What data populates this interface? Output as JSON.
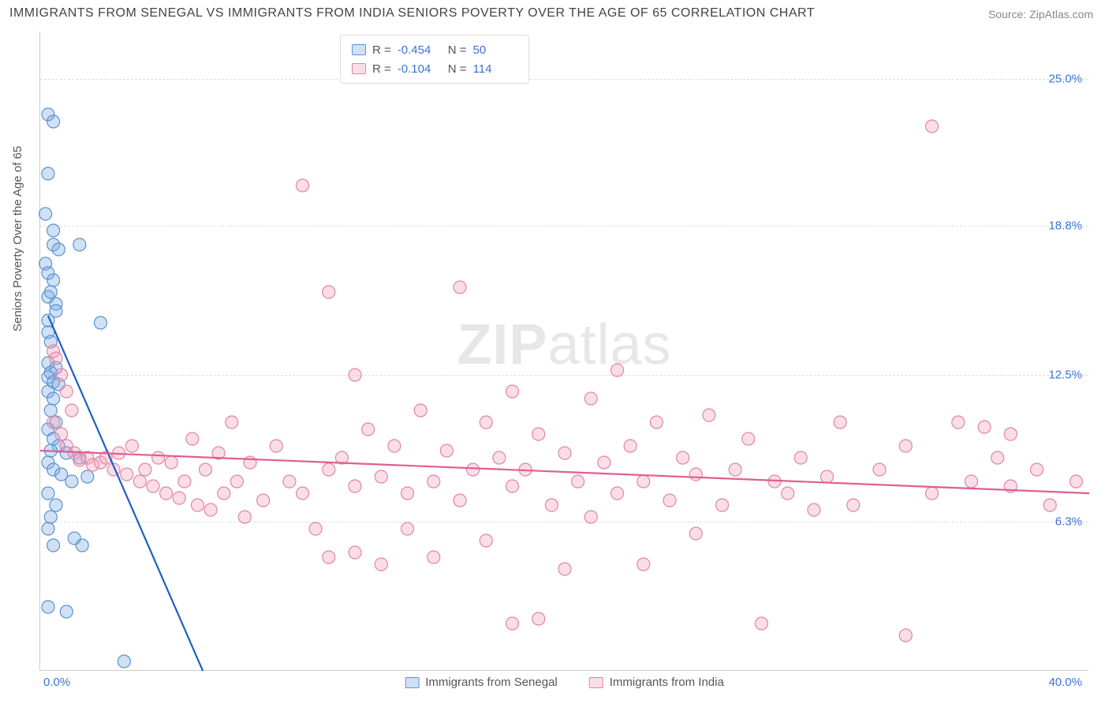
{
  "title": "IMMIGRANTS FROM SENEGAL VS IMMIGRANTS FROM INDIA SENIORS POVERTY OVER THE AGE OF 65 CORRELATION CHART",
  "source": "Source: ZipAtlas.com",
  "ylabel": "Seniors Poverty Over the Age of 65",
  "watermark_bold": "ZIP",
  "watermark_rest": "atlas",
  "chart": {
    "type": "scatter",
    "xlim": [
      0,
      40
    ],
    "ylim": [
      0,
      27
    ],
    "x_tick_left": "0.0%",
    "x_tick_right": "40.0%",
    "y_ticks": [
      {
        "v": 6.3,
        "label": "6.3%"
      },
      {
        "v": 12.5,
        "label": "12.5%"
      },
      {
        "v": 18.8,
        "label": "18.8%"
      },
      {
        "v": 25.0,
        "label": "25.0%"
      }
    ],
    "background_color": "#ffffff",
    "grid_color": "#dddddd",
    "axis_color": "#cccccc",
    "tick_color": "#3b74d6",
    "marker_radius": 8,
    "marker_stroke_width": 1.2,
    "line_width": 2.2,
    "series": [
      {
        "name": "Immigrants from Senegal",
        "fill": "rgba(120,170,225,0.35)",
        "stroke": "#5b91d0",
        "line_color": "#1f5fc4",
        "R": "-0.454",
        "N": "50",
        "trend": {
          "x1": 0.3,
          "y1": 15.0,
          "x2": 6.2,
          "y2": 0.0
        },
        "points": [
          [
            0.3,
            23.5
          ],
          [
            0.5,
            23.2
          ],
          [
            0.3,
            21.0
          ],
          [
            0.2,
            19.3
          ],
          [
            0.5,
            18.6
          ],
          [
            0.5,
            18.0
          ],
          [
            0.7,
            17.8
          ],
          [
            0.2,
            17.2
          ],
          [
            0.3,
            16.8
          ],
          [
            0.5,
            16.5
          ],
          [
            1.5,
            18.0
          ],
          [
            0.3,
            15.8
          ],
          [
            0.6,
            15.5
          ],
          [
            0.3,
            14.8
          ],
          [
            2.3,
            14.7
          ],
          [
            0.3,
            14.3
          ],
          [
            0.4,
            13.9
          ],
          [
            0.3,
            13.0
          ],
          [
            0.6,
            12.8
          ],
          [
            0.4,
            12.6
          ],
          [
            0.3,
            12.4
          ],
          [
            0.5,
            12.2
          ],
          [
            0.7,
            12.1
          ],
          [
            0.3,
            11.8
          ],
          [
            0.5,
            11.5
          ],
          [
            0.4,
            11.0
          ],
          [
            0.6,
            10.5
          ],
          [
            0.3,
            10.2
          ],
          [
            0.5,
            9.8
          ],
          [
            0.7,
            9.5
          ],
          [
            0.4,
            9.3
          ],
          [
            1.0,
            9.2
          ],
          [
            1.5,
            9.0
          ],
          [
            0.3,
            8.8
          ],
          [
            0.5,
            8.5
          ],
          [
            0.8,
            8.3
          ],
          [
            1.2,
            8.0
          ],
          [
            1.8,
            8.2
          ],
          [
            0.3,
            7.5
          ],
          [
            0.6,
            7.0
          ],
          [
            0.4,
            6.5
          ],
          [
            0.3,
            6.0
          ],
          [
            1.3,
            5.6
          ],
          [
            0.5,
            5.3
          ],
          [
            1.6,
            5.3
          ],
          [
            0.3,
            2.7
          ],
          [
            1.0,
            2.5
          ],
          [
            3.2,
            0.4
          ],
          [
            0.4,
            16.0
          ],
          [
            0.6,
            15.2
          ]
        ]
      },
      {
        "name": "Immigrants from India",
        "fill": "rgba(240,160,185,0.35)",
        "stroke": "#e483a4",
        "line_color": "#e05e91",
        "R": "-0.104",
        "N": "114",
        "trend": {
          "x1": 0.0,
          "y1": 9.3,
          "x2": 40.0,
          "y2": 7.5
        },
        "points": [
          [
            0.5,
            13.5
          ],
          [
            0.6,
            13.2
          ],
          [
            0.8,
            12.5
          ],
          [
            1.0,
            11.8
          ],
          [
            1.2,
            11.0
          ],
          [
            0.5,
            10.5
          ],
          [
            0.8,
            10.0
          ],
          [
            1.0,
            9.5
          ],
          [
            1.3,
            9.2
          ],
          [
            1.5,
            8.9
          ],
          [
            1.8,
            9.0
          ],
          [
            2.0,
            8.7
          ],
          [
            2.3,
            8.8
          ],
          [
            2.5,
            9.0
          ],
          [
            2.8,
            8.5
          ],
          [
            3.0,
            9.2
          ],
          [
            3.3,
            8.3
          ],
          [
            3.5,
            9.5
          ],
          [
            3.8,
            8.0
          ],
          [
            4.0,
            8.5
          ],
          [
            4.3,
            7.8
          ],
          [
            4.5,
            9.0
          ],
          [
            4.8,
            7.5
          ],
          [
            5.0,
            8.8
          ],
          [
            5.3,
            7.3
          ],
          [
            5.5,
            8.0
          ],
          [
            5.8,
            9.8
          ],
          [
            6.0,
            7.0
          ],
          [
            6.3,
            8.5
          ],
          [
            6.5,
            6.8
          ],
          [
            6.8,
            9.2
          ],
          [
            7.0,
            7.5
          ],
          [
            7.3,
            10.5
          ],
          [
            7.5,
            8.0
          ],
          [
            7.8,
            6.5
          ],
          [
            8.0,
            8.8
          ],
          [
            8.5,
            7.2
          ],
          [
            9.0,
            9.5
          ],
          [
            9.5,
            8.0
          ],
          [
            10.0,
            20.5
          ],
          [
            10.0,
            7.5
          ],
          [
            10.5,
            6.0
          ],
          [
            11.0,
            16.0
          ],
          [
            11.0,
            8.5
          ],
          [
            11.0,
            4.8
          ],
          [
            11.5,
            9.0
          ],
          [
            12.0,
            12.5
          ],
          [
            12.0,
            7.8
          ],
          [
            12.0,
            5.0
          ],
          [
            12.5,
            10.2
          ],
          [
            13.0,
            8.2
          ],
          [
            13.0,
            4.5
          ],
          [
            13.5,
            9.5
          ],
          [
            14.0,
            7.5
          ],
          [
            14.0,
            6.0
          ],
          [
            14.5,
            11.0
          ],
          [
            15.0,
            8.0
          ],
          [
            15.0,
            4.8
          ],
          [
            15.5,
            9.3
          ],
          [
            16.0,
            16.2
          ],
          [
            16.0,
            7.2
          ],
          [
            16.5,
            8.5
          ],
          [
            17.0,
            10.5
          ],
          [
            17.0,
            5.5
          ],
          [
            17.5,
            9.0
          ],
          [
            18.0,
            11.8
          ],
          [
            18.0,
            7.8
          ],
          [
            18.0,
            2.0
          ],
          [
            18.5,
            8.5
          ],
          [
            19.0,
            2.2
          ],
          [
            19.0,
            10.0
          ],
          [
            19.5,
            7.0
          ],
          [
            20.0,
            9.2
          ],
          [
            20.0,
            4.3
          ],
          [
            20.5,
            8.0
          ],
          [
            21.0,
            11.5
          ],
          [
            21.0,
            6.5
          ],
          [
            21.5,
            8.8
          ],
          [
            22.0,
            12.7
          ],
          [
            22.0,
            7.5
          ],
          [
            22.5,
            9.5
          ],
          [
            23.0,
            8.0
          ],
          [
            23.0,
            4.5
          ],
          [
            23.5,
            10.5
          ],
          [
            24.0,
            7.2
          ],
          [
            24.5,
            9.0
          ],
          [
            25.0,
            8.3
          ],
          [
            25.0,
            5.8
          ],
          [
            25.5,
            10.8
          ],
          [
            26.0,
            7.0
          ],
          [
            26.5,
            8.5
          ],
          [
            27.0,
            9.8
          ],
          [
            27.5,
            2.0
          ],
          [
            28.0,
            8.0
          ],
          [
            28.5,
            7.5
          ],
          [
            29.0,
            9.0
          ],
          [
            29.5,
            6.8
          ],
          [
            30.0,
            8.2
          ],
          [
            30.5,
            10.5
          ],
          [
            31.0,
            7.0
          ],
          [
            32.0,
            8.5
          ],
          [
            33.0,
            9.5
          ],
          [
            33.0,
            1.5
          ],
          [
            34.0,
            23.0
          ],
          [
            34.0,
            7.5
          ],
          [
            35.0,
            10.5
          ],
          [
            35.5,
            8.0
          ],
          [
            36.0,
            10.3
          ],
          [
            36.5,
            9.0
          ],
          [
            37.0,
            7.8
          ],
          [
            37.0,
            10.0
          ],
          [
            38.0,
            8.5
          ],
          [
            38.5,
            7.0
          ],
          [
            39.5,
            8.0
          ]
        ]
      }
    ]
  }
}
